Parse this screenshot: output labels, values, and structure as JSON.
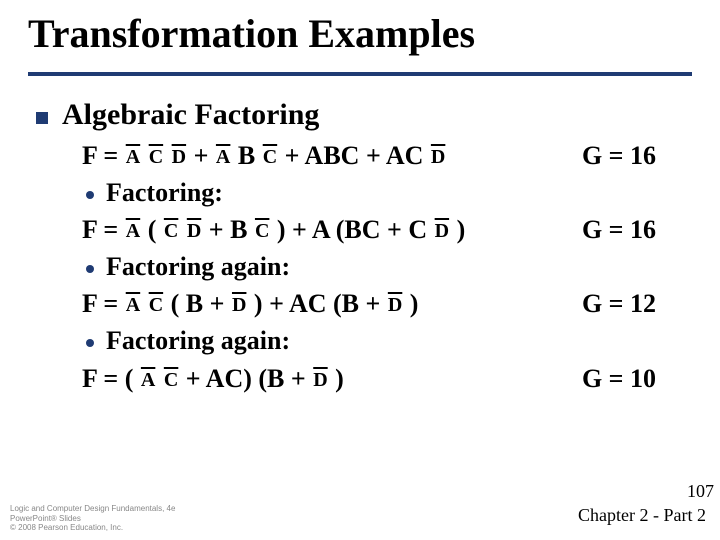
{
  "slide": {
    "title": "Transformation Examples",
    "heading": "Algebraic Factoring",
    "bullets": {
      "b1": "Factoring:",
      "b2": "Factoring again:",
      "b3": "Factoring again:"
    },
    "eq1": {
      "F": "F = ",
      "t1": " + ",
      "t2": " B ",
      "t3": " + ABC + AC ",
      "A1": "A",
      "C1": "C",
      "D1": "D",
      "A2": "A",
      "C2": "C",
      "D2": "D",
      "G": "G = 16"
    },
    "eq2": {
      "F": "F = ",
      "lp": " ( ",
      "t1": "  +  B ",
      "t2": " ) + A (BC + C ",
      "rp": " )",
      "A1": "A",
      "C1": "C",
      "D1": "D",
      "C2": "C",
      "D2": "D",
      "G": "G = 16"
    },
    "eq3": {
      "F": "F = ",
      "sp": " ",
      "lp": " ( B + ",
      "t1": "  ) + AC (B + ",
      "rp": " )",
      "A1": "A",
      "C1": "C",
      "D1": "D",
      "D2": "D",
      "G": "G = 12"
    },
    "eq4": {
      "F": "F = ( ",
      "sp": " ",
      "t1": "  +  AC) (B + ",
      "rp": " )",
      "A1": "A",
      "C1": "C",
      "D1": "D",
      "G": "G = 10"
    },
    "footer": {
      "line1": "Logic and Computer Design Fundamentals, 4e",
      "line2": "PowerPoint® Slides",
      "line3": "© 2008 Pearson Education, Inc.",
      "chapter": "Chapter 2 - Part 2",
      "page": "107"
    },
    "style": {
      "accent": "#1f3b73",
      "title_fontsize": 40,
      "h2_fontsize": 30,
      "body_fontsize": 26,
      "overline_fontsize": 20,
      "background": "#ffffff"
    }
  }
}
